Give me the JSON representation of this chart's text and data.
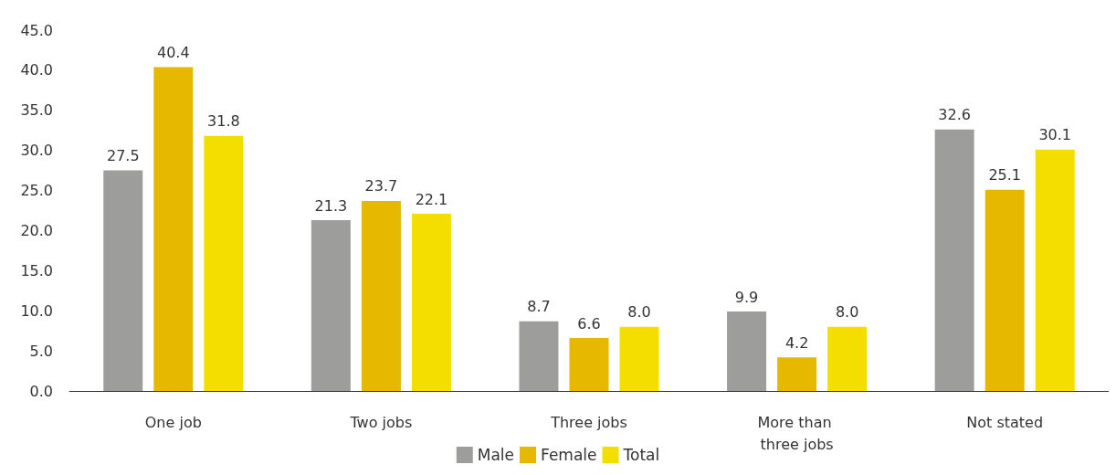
{
  "chart_data": {
    "type": "bar",
    "categories": [
      "One job",
      "Two jobs",
      "Three jobs",
      "More than three jobs",
      "Not stated"
    ],
    "series": [
      {
        "name": "Male",
        "color": "#9d9d9b",
        "values": [
          27.5,
          21.3,
          8.7,
          9.9,
          32.6
        ],
        "value_labels": [
          "27.5",
          "21.3",
          "8.7",
          "9.9",
          "32.6"
        ]
      },
      {
        "name": "Female",
        "color": "#e6b800",
        "values": [
          40.4,
          23.7,
          6.6,
          4.2,
          25.1
        ],
        "value_labels": [
          "40.4",
          "23.7",
          "6.6",
          "4.2",
          "25.1"
        ]
      },
      {
        "name": "Total",
        "color": "#f4de00",
        "values": [
          31.8,
          22.1,
          8.0,
          8.0,
          30.1
        ],
        "value_labels": [
          "31.8",
          "22.1",
          "8.0",
          "8.0",
          "30.1"
        ]
      }
    ],
    "ylim": [
      0,
      45
    ],
    "yticks": [
      {
        "value": 0,
        "label": "0.0"
      },
      {
        "value": 5,
        "label": "5.0"
      },
      {
        "value": 10,
        "label": "10.0"
      },
      {
        "value": 15,
        "label": "15.0"
      },
      {
        "value": 20,
        "label": "20.0"
      },
      {
        "value": 25,
        "label": "25.0"
      },
      {
        "value": 30,
        "label": "30.0"
      },
      {
        "value": 35,
        "label": "35.0"
      },
      {
        "value": 40,
        "label": "40.0"
      },
      {
        "value": 45,
        "label": "45.0"
      }
    ],
    "grid": false,
    "legend": "bottom"
  }
}
